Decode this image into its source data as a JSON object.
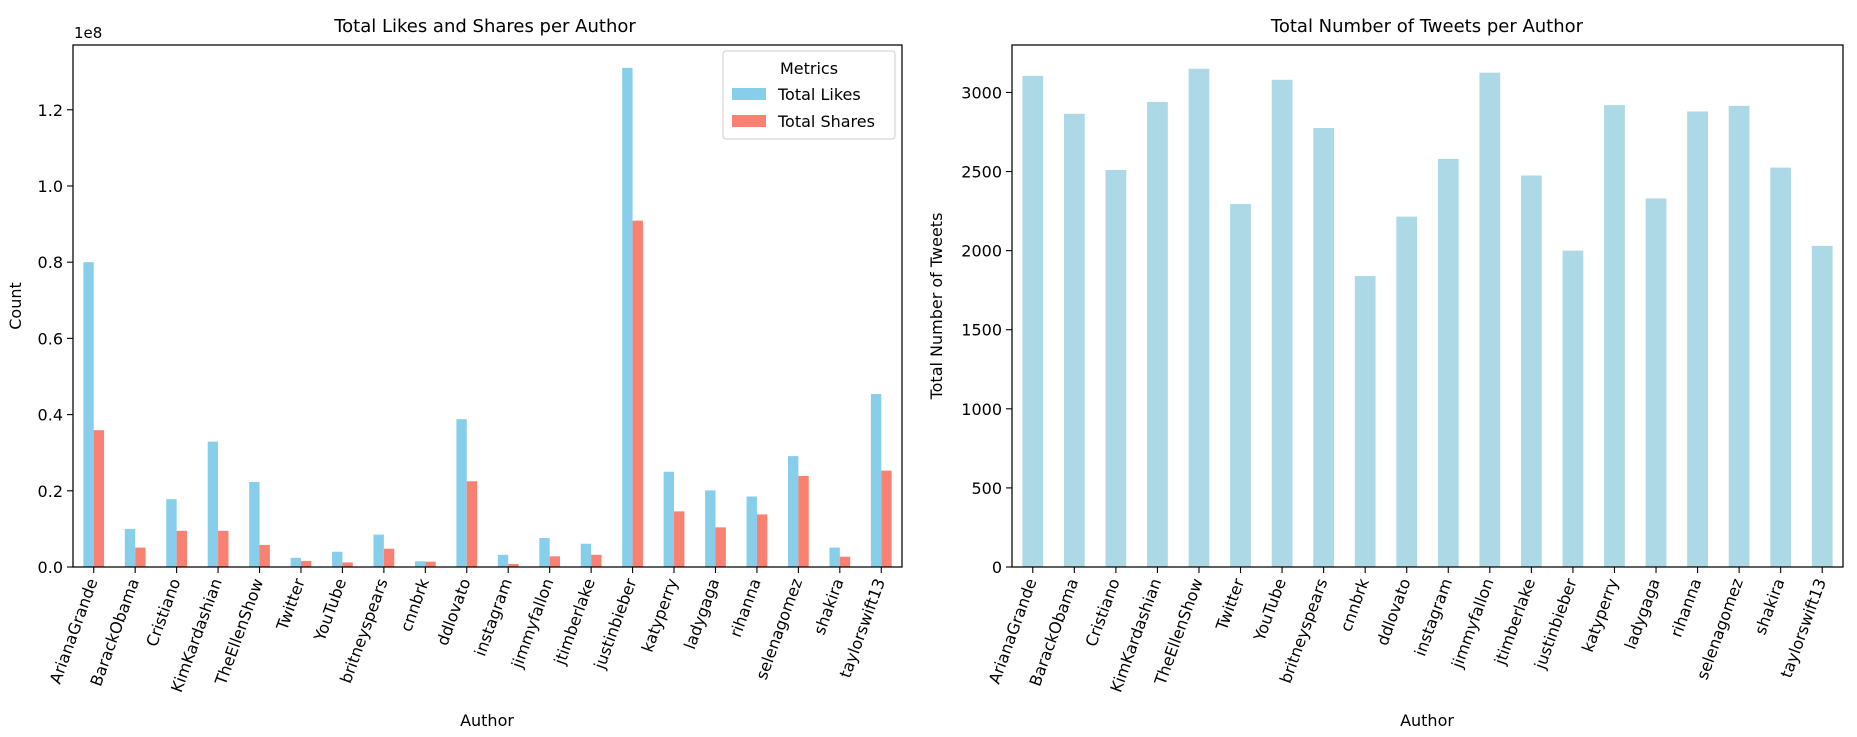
{
  "chart_data": [
    {
      "type": "bar",
      "title": "Total Likes and Shares per Author",
      "xlabel": "Author",
      "ylabel": "Count",
      "offset_text": "1e8",
      "categories": [
        "ArianaGrande",
        "BarackObama",
        "Cristiano",
        "KimKardashian",
        "TheEllenShow",
        "Twitter",
        "YouTube",
        "britneyspears",
        "cnnbrk",
        "ddlovato",
        "instagram",
        "jimmyfallon",
        "jtimberlake",
        "justinbieber",
        "katyperry",
        "ladygaga",
        "rihanna",
        "selenagomez",
        "shakira",
        "taylorswift13"
      ],
      "series": [
        {
          "name": "Total Likes",
          "color": "#87ceeb",
          "values": [
            80000000,
            10000000,
            17800000,
            32900000,
            22300000,
            2400000,
            4000000,
            8500000,
            1500000,
            38800000,
            3200000,
            7600000,
            6100000,
            131000000,
            25000000,
            20100000,
            18500000,
            29100000,
            5100000,
            45400000
          ]
        },
        {
          "name": "Total Shares",
          "color": "#fa8072",
          "values": [
            35900000,
            5100000,
            9500000,
            9500000,
            5800000,
            1600000,
            1200000,
            4800000,
            1400000,
            22500000,
            800000,
            2800000,
            3200000,
            90900000,
            14600000,
            10400000,
            13800000,
            23900000,
            2700000,
            25300000
          ]
        }
      ],
      "ylim": [
        0,
        137000000
      ],
      "yticks": [
        0,
        20000000,
        40000000,
        60000000,
        80000000,
        100000000,
        120000000
      ],
      "ytick_labels": [
        "0.0",
        "0.2",
        "0.4",
        "0.6",
        "0.8",
        "1.0",
        "1.2"
      ],
      "legend": {
        "title": "Metrics",
        "placement": "top-right"
      },
      "grid": false
    },
    {
      "type": "bar",
      "title": "Total Number of Tweets per Author",
      "xlabel": "Author",
      "ylabel": "Total Number of Tweets",
      "categories": [
        "ArianaGrande",
        "BarackObama",
        "Cristiano",
        "KimKardashian",
        "TheEllenShow",
        "Twitter",
        "YouTube",
        "britneyspears",
        "cnnbrk",
        "ddlovato",
        "instagram",
        "jimmyfallon",
        "jtimberlake",
        "justinbieber",
        "katyperry",
        "ladygaga",
        "rihanna",
        "selenagomez",
        "shakira",
        "taylorswift13"
      ],
      "series": [
        {
          "color": "#add8e6",
          "values": [
            3105,
            2865,
            2510,
            2940,
            3150,
            2295,
            3080,
            2775,
            1840,
            2215,
            2580,
            3125,
            2475,
            2000,
            2920,
            2330,
            2880,
            2915,
            2525,
            2030
          ]
        }
      ],
      "ylim": [
        0,
        3300
      ],
      "yticks": [
        0,
        500,
        1000,
        1500,
        2000,
        2500,
        3000
      ],
      "ytick_labels": [
        "0",
        "500",
        "1000",
        "1500",
        "2000",
        "2500",
        "3000"
      ],
      "grid": false
    }
  ]
}
